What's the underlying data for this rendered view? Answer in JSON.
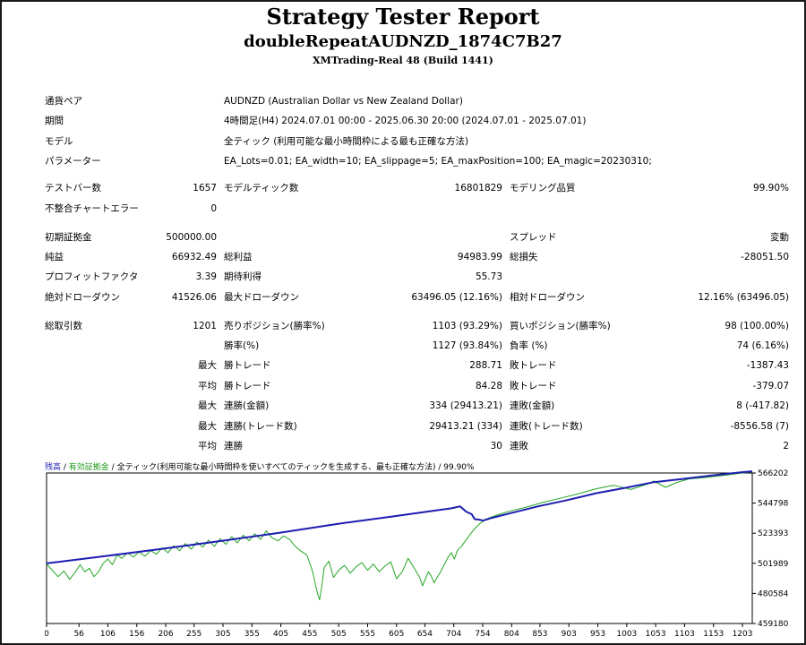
{
  "header": {
    "title": "Strategy Tester Report",
    "subtitle": "doubleRepeatAUDNZD_1874C7B27",
    "server": "XMTrading-Real 48 (Build 1441)"
  },
  "info": [
    {
      "label": "通貨ペア",
      "value": "AUDNZD (Australian Dollar vs New Zealand Dollar)"
    },
    {
      "label": "期間",
      "value": "4時間足(H4) 2024.07.01 00:00 - 2025.06.30 20:00 (2024.07.01 - 2025.07.01)"
    },
    {
      "label": "モデル",
      "value": "全ティック (利用可能な最小時間枠による最も正確な方法)"
    },
    {
      "label": "パラメーター",
      "value": "EA_Lots=0.01; EA_width=10; EA_slippage=5; EA_maxPosition=100; EA_magic=20230310;"
    }
  ],
  "stats": {
    "test_bars_label": "テストバー数",
    "test_bars": "1657",
    "model_ticks_label": "モデルティック数",
    "model_ticks": "16801829",
    "modeling_quality_label": "モデリング品質",
    "modeling_quality": "99.90%",
    "mismatch_label": "不整合チャートエラー",
    "mismatch": "0",
    "initial_deposit_label": "初期証拠金",
    "initial_deposit": "500000.00",
    "spread_label": "スプレッド",
    "spread": "変動",
    "net_profit_label": "純益",
    "net_profit": "66932.49",
    "gross_profit_label": "総利益",
    "gross_profit": "94983.99",
    "gross_loss_label": "総損失",
    "gross_loss": "-28051.50",
    "profit_factor_label": "プロフィットファクタ",
    "profit_factor": "3.39",
    "expected_payoff_label": "期待利得",
    "expected_payoff": "55.73",
    "abs_dd_label": "絶対ドローダウン",
    "abs_dd": "41526.06",
    "max_dd_label": "最大ドローダウン",
    "max_dd": "63496.05 (12.16%)",
    "rel_dd_label": "相対ドローダウン",
    "rel_dd": "12.16% (63496.05)",
    "total_trades_label": "総取引数",
    "total_trades": "1201",
    "short_label": "売りポジション(勝率%)",
    "short": "1103 (93.29%)",
    "long_label": "買いポジション(勝率%)",
    "long": "98 (100.00%)",
    "win_rate_label": "勝率(%)",
    "win_rate": "1127 (93.84%)",
    "loss_rate_label": "負率 (%)",
    "loss_rate": "74 (6.16%)",
    "max_label": "最大",
    "avg_label": "平均",
    "largest_win_label": "勝トレード",
    "largest_win": "288.71",
    "largest_loss_label": "敗トレード",
    "largest_loss": "-1387.43",
    "avg_win_label": "勝トレード",
    "avg_win": "84.28",
    "avg_loss_label": "敗トレード",
    "avg_loss": "-379.07",
    "max_consec_wins_label": "連勝(金額)",
    "max_consec_wins": "334 (29413.21)",
    "max_consec_losses_label": "連敗(金額)",
    "max_consec_losses": "8 (-417.82)",
    "max_consec_profit_label": "連勝(トレード数)",
    "max_consec_profit": "29413.21 (334)",
    "max_consec_loss_label": "連敗(トレード数)",
    "max_consec_loss": "-8556.58 (7)",
    "avg_consec_wins_label": "連勝",
    "avg_consec_wins": "30",
    "avg_consec_losses_label": "連敗",
    "avg_consec_losses": "2"
  },
  "chart_legend": {
    "balance": "残高",
    "sep1": " / ",
    "equity": "有効証拠金",
    "sep2": " / ",
    "rest": "全ティック(利用可能な最小時間枠を使いすべてのティックを生成する、最も正確な方法) / 99.90%"
  },
  "chart_data": {
    "type": "line",
    "x_ticks": [
      "0",
      "56",
      "106",
      "156",
      "206",
      "255",
      "305",
      "355",
      "405",
      "455",
      "505",
      "555",
      "605",
      "654",
      "704",
      "754",
      "804",
      "853",
      "903",
      "953",
      "1003",
      "1053",
      "1103",
      "1153",
      "1203"
    ],
    "y_ticks": [
      "566202",
      "544798",
      "523393",
      "501989",
      "480584",
      "459180"
    ],
    "ylim": [
      459180,
      566202
    ],
    "xlim": [
      0,
      1220
    ],
    "series": [
      {
        "name": "残高",
        "color": "#1d1db0",
        "x": [
          0,
          100,
          200,
          300,
          400,
          500,
          600,
          700,
          715,
          725,
          735,
          740,
          748,
          755,
          770,
          800,
          850,
          900,
          950,
          1000,
          1050,
          1100,
          1150,
          1200,
          1220
        ],
        "y": [
          501900,
          507000,
          512300,
          517800,
          523500,
          529800,
          535400,
          541100,
          542500,
          538800,
          536900,
          533400,
          533000,
          532400,
          534300,
          537400,
          542500,
          546900,
          551800,
          555600,
          559700,
          562000,
          564400,
          566700,
          567400
        ]
      },
      {
        "name": "有効証拠金",
        "color": "#24a524",
        "x": [
          0,
          10,
          20,
          30,
          40,
          50,
          58,
          66,
          74,
          82,
          90,
          98,
          106,
          114,
          122,
          130,
          140,
          150,
          160,
          170,
          180,
          190,
          200,
          210,
          220,
          230,
          240,
          250,
          260,
          270,
          280,
          290,
          300,
          310,
          320,
          330,
          340,
          350,
          360,
          370,
          380,
          390,
          400,
          410,
          420,
          430,
          440,
          450,
          460,
          468,
          472,
          476,
          480,
          488,
          496,
          505,
          515,
          525,
          535,
          545,
          555,
          565,
          575,
          585,
          595,
          605,
          615,
          625,
          635,
          645,
          650,
          655,
          660,
          665,
          670,
          675,
          680,
          685,
          690,
          695,
          700,
          705,
          710,
          718,
          726,
          734,
          742,
          750,
          760,
          780,
          800,
          830,
          860,
          890,
          920,
          950,
          980,
          1010,
          1040,
          1050,
          1070,
          1090,
          1110,
          1140,
          1170,
          1200,
          1220
        ],
        "y": [
          501500,
          497000,
          492500,
          496500,
          490500,
          496000,
          501000,
          496000,
          498500,
          492500,
          496000,
          502000,
          505000,
          501000,
          508000,
          505500,
          509500,
          506500,
          510000,
          507000,
          511000,
          508500,
          513000,
          509500,
          514500,
          511000,
          516000,
          512000,
          517000,
          513500,
          518500,
          514000,
          519500,
          515500,
          521000,
          516500,
          522000,
          518000,
          523000,
          519000,
          525000,
          520000,
          518000,
          521500,
          519000,
          514000,
          510500,
          508000,
          496000,
          481000,
          476000,
          486000,
          499000,
          503500,
          492000,
          497000,
          500500,
          495000,
          499500,
          502500,
          497000,
          501500,
          496000,
          500000,
          503000,
          491000,
          496000,
          505500,
          499000,
          492000,
          486000,
          491000,
          496000,
          493000,
          488000,
          492000,
          495000,
          499000,
          503000,
          507000,
          509500,
          505000,
          511000,
          514500,
          519000,
          523500,
          527500,
          530500,
          533500,
          536500,
          539000,
          542000,
          545500,
          548500,
          551500,
          555000,
          557500,
          554500,
          558500,
          560500,
          556000,
          559500,
          562000,
          563000,
          564500,
          566000,
          567000
        ]
      }
    ]
  }
}
